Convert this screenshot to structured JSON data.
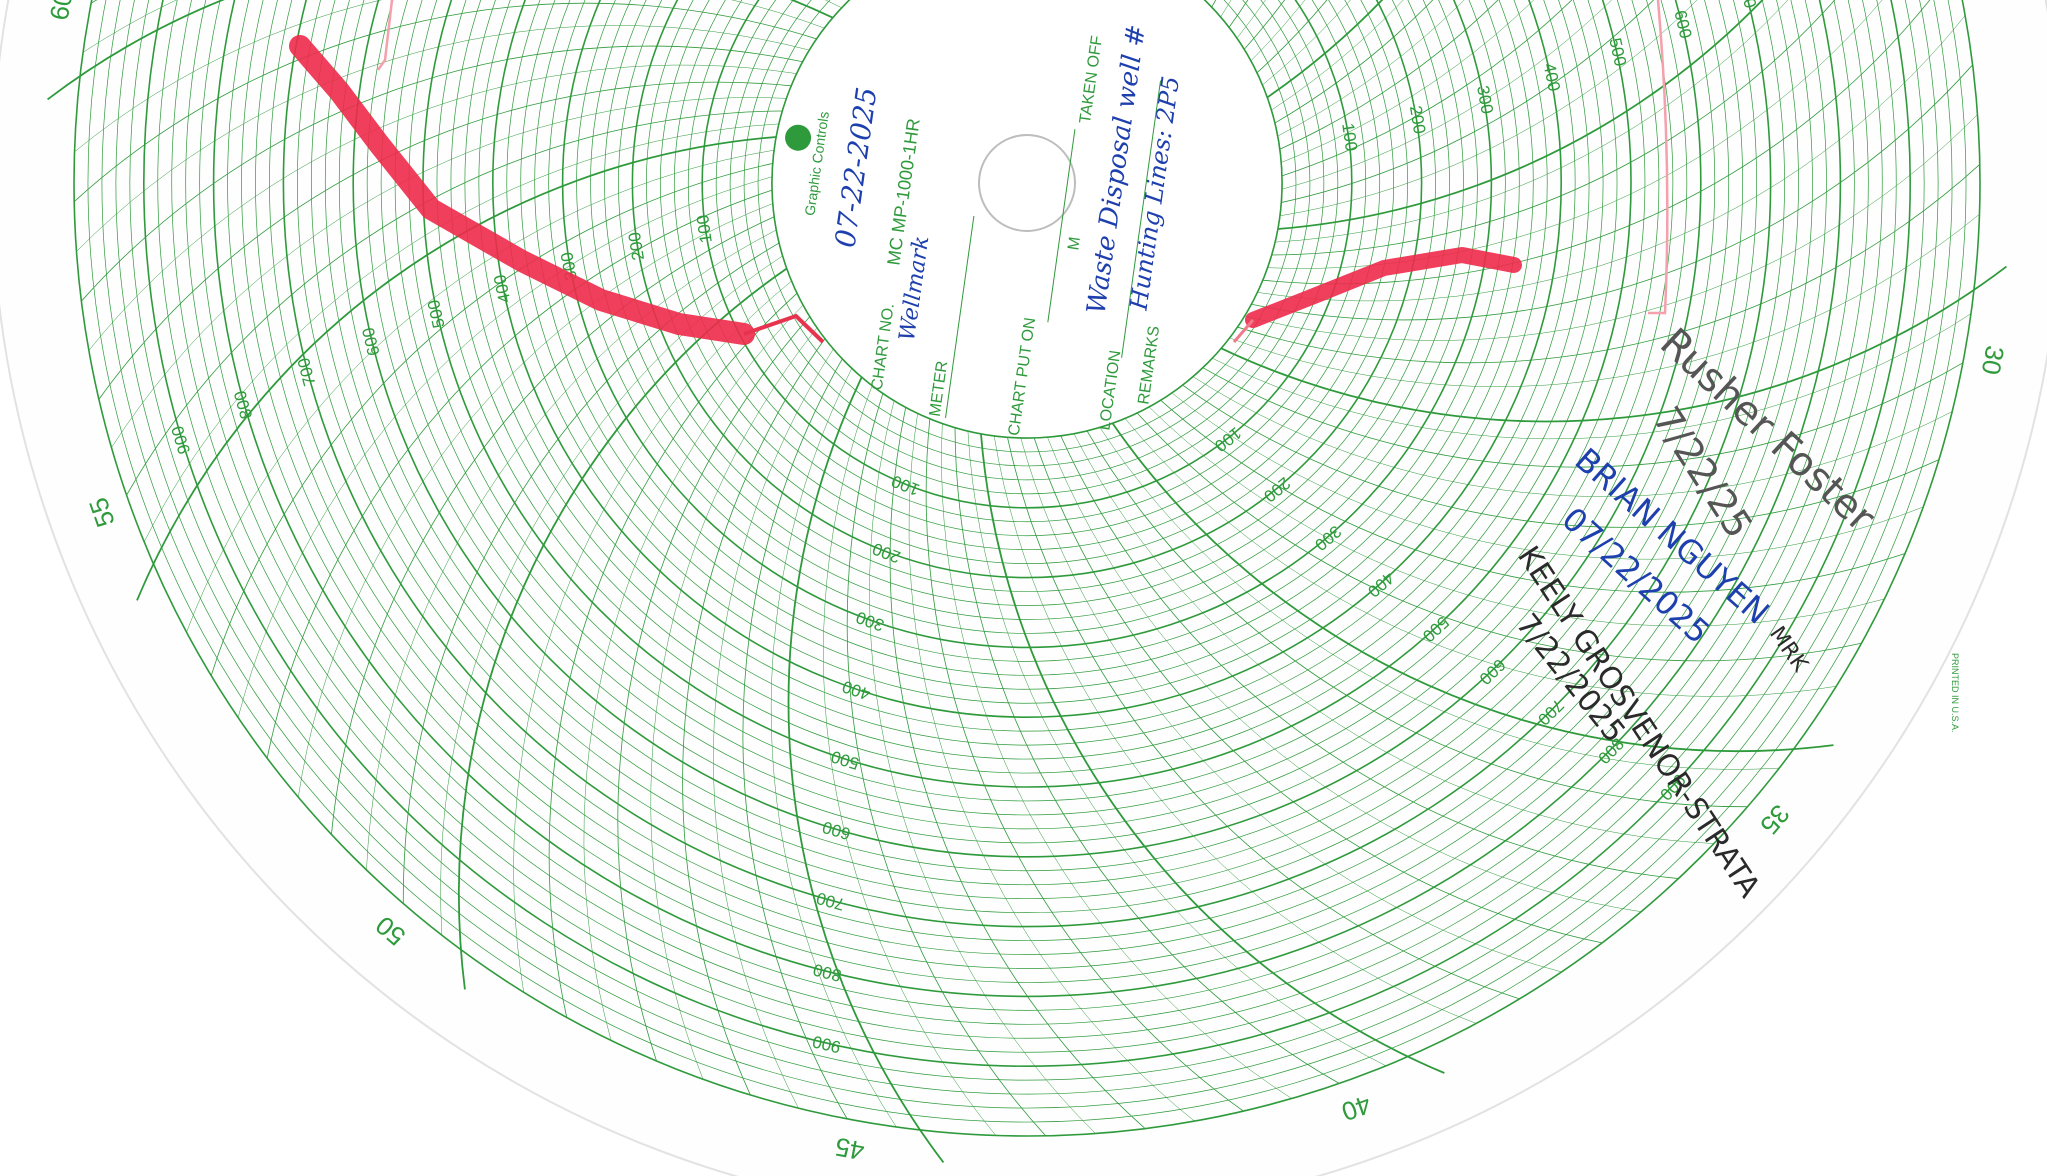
{
  "chart_labels": {
    "minute_labels": [
      30,
      35,
      40,
      45,
      50,
      55,
      60
    ],
    "scale_labels": [
      100,
      200,
      300,
      400,
      500,
      600,
      700,
      800,
      900
    ],
    "printed_in": "PRINTED IN U.S.A."
  },
  "center": {
    "brand": "Graphic Controls",
    "chart_no_label": "CHART NO.",
    "chart_no": "MC MP-1000-1HR",
    "meter_label": "METER",
    "chart_put_on_label": "CHART PUT ON",
    "m_label": "M",
    "taken_off_label": "TAKEN OFF",
    "location_label": "LOCATION",
    "remarks_label": "REMARKS"
  },
  "handwriting": {
    "date": "07-22-2025",
    "meter": "Wellmark",
    "location": "Waste Disposal well #",
    "remarks": "Hunting Lines: 2P5"
  },
  "signatures": [
    {
      "name": "Rusher Foster",
      "date": "7/22/25"
    },
    {
      "name": "BRIAN NGUYEN",
      "note": "MRK",
      "date": "07/22/2025"
    },
    {
      "name": "KEELY GROSVENOR-STRATA",
      "date": "7/22/2025"
    }
  ]
}
